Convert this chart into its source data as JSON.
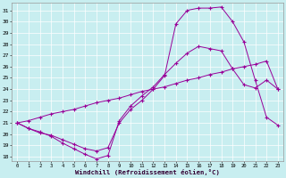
{
  "xlabel": "Windchill (Refroidissement éolien,°C)",
  "bg_color": "#c8eef0",
  "line_color": "#990099",
  "xlim_min": -0.5,
  "xlim_max": 23.5,
  "ylim_min": 17.6,
  "ylim_max": 31.7,
  "xticks": [
    0,
    1,
    2,
    3,
    4,
    5,
    6,
    7,
    8,
    9,
    10,
    11,
    12,
    13,
    14,
    15,
    16,
    17,
    18,
    19,
    20,
    21,
    22,
    23
  ],
  "yticks": [
    18,
    19,
    20,
    21,
    22,
    23,
    24,
    25,
    26,
    27,
    28,
    29,
    30,
    31
  ],
  "lines": [
    {
      "x": [
        0,
        1,
        2,
        3,
        4,
        5,
        6,
        7,
        8,
        9,
        10,
        11,
        12,
        13,
        14,
        15,
        16,
        17,
        18,
        19,
        20,
        21,
        22,
        23
      ],
      "y": [
        21.0,
        20.5,
        20.2,
        19.8,
        19.2,
        18.7,
        18.2,
        17.8,
        18.1,
        21.2,
        22.5,
        23.4,
        24.2,
        25.3,
        26.3,
        27.2,
        27.8,
        27.6,
        27.4,
        25.8,
        24.4,
        24.1,
        24.8,
        24.0
      ]
    },
    {
      "x": [
        0,
        1,
        2,
        3,
        4,
        5,
        6,
        7,
        8,
        9,
        10,
        11,
        12,
        13,
        14,
        15,
        16,
        17,
        18,
        19,
        20,
        21,
        22,
        23
      ],
      "y": [
        21.0,
        20.5,
        20.1,
        19.9,
        19.5,
        19.1,
        18.7,
        18.5,
        18.8,
        21.0,
        22.2,
        23.0,
        24.0,
        25.2,
        29.8,
        31.0,
        31.2,
        31.2,
        31.3,
        30.0,
        28.2,
        24.8,
        21.5,
        20.8
      ]
    },
    {
      "x": [
        0,
        1,
        2,
        3,
        4,
        5,
        6,
        7,
        8,
        9,
        10,
        11,
        12,
        13,
        14,
        15,
        16,
        17,
        18,
        19,
        20,
        21,
        22,
        23
      ],
      "y": [
        21.0,
        21.2,
        21.5,
        21.8,
        22.0,
        22.2,
        22.5,
        22.8,
        23.0,
        23.2,
        23.5,
        23.8,
        24.0,
        24.2,
        24.5,
        24.8,
        25.0,
        25.3,
        25.5,
        25.8,
        26.0,
        26.2,
        26.5,
        24.0
      ]
    }
  ]
}
